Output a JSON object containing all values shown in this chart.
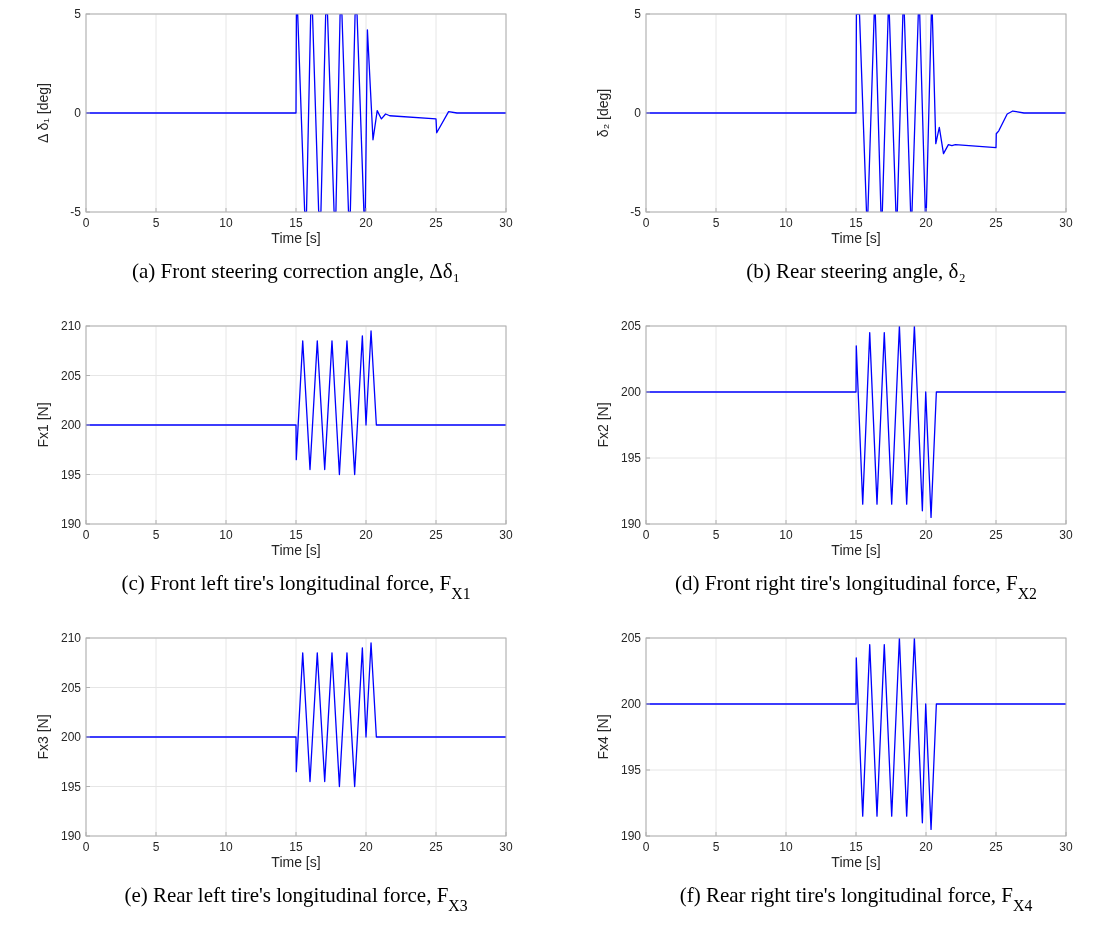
{
  "chart_data": [
    {
      "type": "line",
      "title": "(a) Front steering correction angle, Δδ₁",
      "xlabel": "Time [s]",
      "ylabel": "Δ δ₁ [deg]",
      "xlim": [
        0,
        30
      ],
      "ylim": [
        -5,
        5
      ],
      "xticks": [
        0,
        5,
        10,
        15,
        20,
        25,
        30
      ],
      "yticks": [
        -5,
        0,
        5
      ],
      "grid": true,
      "series": [
        {
          "color": "#0000ff",
          "x": [
            0,
            15,
            15.03,
            15.12,
            15.62,
            15.75,
            16.05,
            16.18,
            16.62,
            16.78,
            17.12,
            17.25,
            17.72,
            17.85,
            18.15,
            18.28,
            18.75,
            18.88,
            19.22,
            19.36,
            19.85,
            19.95,
            20.1,
            20.5,
            20.8,
            21.1,
            21.4,
            21.7,
            25,
            25.05,
            25.9,
            26.5,
            30
          ],
          "values": [
            0,
            0,
            5,
            5,
            -5,
            -5,
            5,
            5,
            -5,
            -5,
            5,
            5,
            -5,
            -5,
            5,
            5,
            -5,
            -5,
            5,
            5,
            -5,
            -5,
            4.2,
            -1.35,
            0.12,
            -0.3,
            -0.05,
            -0.14,
            -0.3,
            -1.0,
            0.07,
            0,
            0
          ]
        }
      ]
    },
    {
      "type": "line",
      "title": "(b) Rear steering angle, δ₂",
      "xlabel": "Time [s]",
      "ylabel": "δ₂ [deg]",
      "xlim": [
        0,
        30
      ],
      "ylim": [
        -5,
        5
      ],
      "xticks": [
        0,
        5,
        10,
        15,
        20,
        25,
        30
      ],
      "yticks": [
        -5,
        0,
        5
      ],
      "grid": true,
      "series": [
        {
          "color": "#0000ff",
          "x": [
            0,
            15,
            15.03,
            15.25,
            15.75,
            15.85,
            16.3,
            16.38,
            16.78,
            16.88,
            17.3,
            17.38,
            17.85,
            17.95,
            18.35,
            18.45,
            18.9,
            19.0,
            19.45,
            19.55,
            19.95,
            20.02,
            20.38,
            20.45,
            20.7,
            20.95,
            21.25,
            21.6,
            21.85,
            22.1,
            25,
            25.02,
            25.2,
            25.8,
            26.2,
            27,
            30
          ],
          "values": [
            0,
            0,
            5,
            5,
            -5,
            -5,
            5,
            5,
            -5,
            -5,
            5,
            5,
            -5,
            -5,
            5,
            5,
            -5,
            -5,
            5,
            5,
            -5,
            -5,
            5,
            5,
            -1.55,
            -0.73,
            -2.05,
            -1.6,
            -1.65,
            -1.6,
            -1.75,
            -1.05,
            -0.9,
            -0.05,
            0.1,
            0,
            0
          ]
        }
      ]
    },
    {
      "type": "line",
      "title": "(c) Front left tire's longitudinal force, F$_{X1}$",
      "xlabel": "Time [s]",
      "ylabel": "Fx1 [N]",
      "xlim": [
        0,
        30
      ],
      "ylim": [
        190,
        210
      ],
      "xticks": [
        0,
        5,
        10,
        15,
        20,
        25,
        30
      ],
      "yticks": [
        190,
        195,
        200,
        205,
        210
      ],
      "grid": true,
      "series": [
        {
          "color": "#0000ff",
          "x": [
            0,
            15,
            15.02,
            15.48,
            16,
            16.52,
            17.05,
            17.57,
            18.1,
            18.64,
            19.19,
            19.74,
            20,
            20.36,
            20.74,
            30
          ],
          "values": [
            200,
            200,
            196.5,
            208.5,
            195.5,
            208.5,
            195.5,
            208.5,
            195,
            208.5,
            195,
            209,
            200,
            209.5,
            200,
            200
          ]
        }
      ]
    },
    {
      "type": "line",
      "title": "(d) Front right tire's longitudinal force, F$_{X2}$",
      "xlabel": "Time [s]",
      "ylabel": "Fx2 [N]",
      "xlim": [
        0,
        30
      ],
      "ylim": [
        190,
        205
      ],
      "xticks": [
        0,
        5,
        10,
        15,
        20,
        25,
        30
      ],
      "yticks": [
        190,
        195,
        200,
        205
      ],
      "grid": true,
      "series": [
        {
          "color": "#0000ff",
          "x": [
            0,
            15,
            15.02,
            15.48,
            15.98,
            16.5,
            17.02,
            17.55,
            18.1,
            18.62,
            19.17,
            19.74,
            19.98,
            20.36,
            20.74,
            30
          ],
          "values": [
            200,
            200,
            203.5,
            191.5,
            204.5,
            191.5,
            204.5,
            191.5,
            205,
            191.5,
            205,
            191,
            200,
            190.5,
            200,
            200
          ]
        }
      ]
    },
    {
      "type": "line",
      "title": "(e) Rear left tire's longitudinal force, F$_{X3}$",
      "xlabel": "Time [s]",
      "ylabel": "Fx3 [N]",
      "xlim": [
        0,
        30
      ],
      "ylim": [
        190,
        210
      ],
      "xticks": [
        0,
        5,
        10,
        15,
        20,
        25,
        30
      ],
      "yticks": [
        190,
        195,
        200,
        205,
        210
      ],
      "grid": true,
      "series": [
        {
          "color": "#0000ff",
          "x": [
            0,
            15,
            15.02,
            15.48,
            16,
            16.52,
            17.05,
            17.57,
            18.1,
            18.64,
            19.19,
            19.74,
            20,
            20.36,
            20.74,
            30
          ],
          "values": [
            200,
            200,
            196.5,
            208.5,
            195.5,
            208.5,
            195.5,
            208.5,
            195,
            208.5,
            195,
            209,
            200,
            209.5,
            200,
            200
          ]
        }
      ]
    },
    {
      "type": "line",
      "title": "(f) Rear right tire's longitudinal force, F$_{X4}$",
      "xlabel": "Time [s]",
      "ylabel": "Fx4 [N]",
      "xlim": [
        0,
        30
      ],
      "ylim": [
        190,
        205
      ],
      "xticks": [
        0,
        5,
        10,
        15,
        20,
        25,
        30
      ],
      "yticks": [
        190,
        195,
        200,
        205
      ],
      "grid": true,
      "series": [
        {
          "color": "#0000ff",
          "x": [
            0,
            15,
            15.02,
            15.48,
            15.98,
            16.5,
            17.02,
            17.55,
            18.1,
            18.62,
            19.17,
            19.74,
            19.98,
            20.36,
            20.74,
            30
          ],
          "values": [
            200,
            200,
            203.5,
            191.5,
            204.5,
            191.5,
            204.5,
            191.5,
            205,
            191.5,
            205,
            191,
            200,
            190.5,
            200,
            200
          ]
        }
      ]
    }
  ]
}
